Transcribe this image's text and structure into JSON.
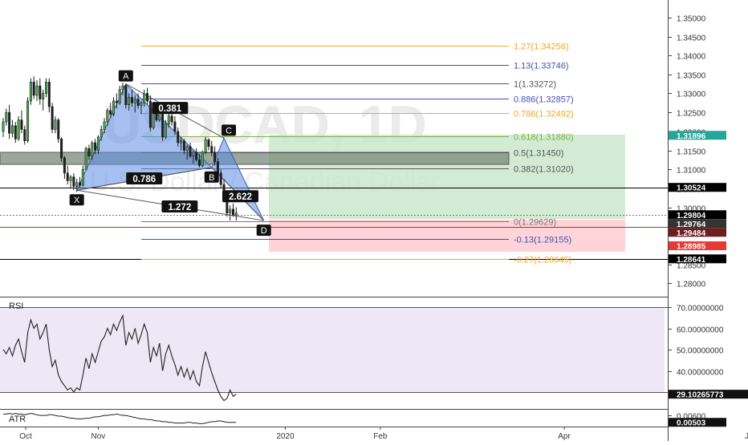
{
  "chart_data": {
    "type": "candlestick",
    "symbol_watermark": "USDCAD, 1D",
    "description_watermark": "U.S. Dollar / Canadian Dollar",
    "colors": {
      "up": "#4caf50",
      "down": "#1f1f1f",
      "background": "#ffffff"
    },
    "price_axis": {
      "ylim": [
        1.2775,
        1.3525
      ],
      "ticks": [
        "1.35000",
        "1.34500",
        "1.34000",
        "1.33500",
        "1.33000",
        "1.32500",
        "1.32000",
        "1.31500",
        "1.31000",
        "1.30500",
        "1.30000",
        "1.29500",
        "1.29000",
        "1.28500",
        "1.28000"
      ]
    },
    "time_axis": {
      "labels": [
        {
          "label": "Oct",
          "day": 0
        },
        {
          "label": "Nov",
          "day": 31
        },
        {
          "label": "2020",
          "day": 92
        },
        {
          "label": "Feb",
          "day": 123
        },
        {
          "label": "Apr",
          "day": 183
        },
        {
          "label": "Jun",
          "day": 244
        }
      ]
    },
    "price_markers": [
      {
        "value": "1.31896",
        "color": "#26a69a"
      },
      {
        "value": "1.30524",
        "color": "#000000"
      },
      {
        "value": "1.29804",
        "color": "#000000"
      },
      {
        "value": "1.29764",
        "color": "#333333"
      },
      {
        "value": "1.29484",
        "color": "#6d1f1f"
      },
      {
        "value": "1.28985",
        "color": "#e53935"
      },
      {
        "value": "1.28641",
        "color": "#000000"
      }
    ],
    "horizontal_lines": [
      {
        "price": 1.30524,
        "color": "#000000"
      },
      {
        "price": 1.29804,
        "color": "#777777",
        "dashed": true
      },
      {
        "price": 1.29484,
        "color": "#c62828"
      },
      {
        "price": 1.28641,
        "color": "#000000"
      }
    ],
    "fib_levels": [
      {
        "label": "1.27(1.34256)",
        "price": 1.34256,
        "color": "#f5a623"
      },
      {
        "label": "1.13(1.33746)",
        "price": 1.33746,
        "color": "#3f51b5"
      },
      {
        "label": "1(1.33272)",
        "price": 1.33272,
        "color": "#555555"
      },
      {
        "label": "0.886(1.32857)",
        "price": 1.32857,
        "color": "#3f51b5"
      },
      {
        "label": "0.786(1.32492)",
        "price": 1.32492,
        "color": "#f5a623"
      },
      {
        "label": "0.618(1.31880)",
        "price": 1.3188,
        "color": "#7cb342"
      },
      {
        "label": "0.5(1.31450)",
        "price": 1.3145,
        "color": "#555555"
      },
      {
        "label": "0.382(1.31020)",
        "price": 1.3102,
        "color": "#555555"
      },
      {
        "label": "0(1.29629)",
        "price": 1.29629,
        "color": "#777777"
      },
      {
        "label": "-0.13(1.29155)",
        "price": 1.29155,
        "color": "#3f51b5"
      },
      {
        "label": "-0.27(1.28645)",
        "price": 1.28645,
        "color": "#f5a623"
      }
    ],
    "pattern_points": [
      {
        "label": "X",
        "day": 24,
        "price": 1.3045
      },
      {
        "label": "A",
        "day": 40,
        "price": 1.3325
      },
      {
        "label": "B",
        "day": 68,
        "price": 1.3105
      },
      {
        "label": "C",
        "day": 72,
        "price": 1.3182
      },
      {
        "label": "D",
        "day": 85,
        "price": 1.2965
      }
    ],
    "pattern_ratios": [
      "0.381",
      "0.786",
      "2.622",
      "1.272"
    ],
    "candles": [
      {
        "o": 1.32,
        "h": 1.3235,
        "l": 1.3185,
        "c": 1.3225
      },
      {
        "o": 1.3225,
        "h": 1.326,
        "l": 1.3215,
        "c": 1.325
      },
      {
        "o": 1.325,
        "h": 1.327,
        "l": 1.318,
        "c": 1.3195
      },
      {
        "o": 1.3195,
        "h": 1.323,
        "l": 1.3185,
        "c": 1.3215
      },
      {
        "o": 1.3215,
        "h": 1.3225,
        "l": 1.317,
        "c": 1.318
      },
      {
        "o": 1.318,
        "h": 1.324,
        "l": 1.3175,
        "c": 1.323
      },
      {
        "o": 1.323,
        "h": 1.3255,
        "l": 1.3195,
        "c": 1.3205
      },
      {
        "o": 1.3205,
        "h": 1.3215,
        "l": 1.3165,
        "c": 1.3175
      },
      {
        "o": 1.3175,
        "h": 1.329,
        "l": 1.317,
        "c": 1.328
      },
      {
        "o": 1.328,
        "h": 1.334,
        "l": 1.327,
        "c": 1.333
      },
      {
        "o": 1.333,
        "h": 1.3345,
        "l": 1.3285,
        "c": 1.3295
      },
      {
        "o": 1.3295,
        "h": 1.3335,
        "l": 1.328,
        "c": 1.332
      },
      {
        "o": 1.332,
        "h": 1.334,
        "l": 1.327,
        "c": 1.3285
      },
      {
        "o": 1.3285,
        "h": 1.331,
        "l": 1.3255,
        "c": 1.33
      },
      {
        "o": 1.33,
        "h": 1.334,
        "l": 1.329,
        "c": 1.333
      },
      {
        "o": 1.333,
        "h": 1.334,
        "l": 1.325,
        "c": 1.3265
      },
      {
        "o": 1.3265,
        "h": 1.3275,
        "l": 1.3195,
        "c": 1.3205
      },
      {
        "o": 1.3205,
        "h": 1.324,
        "l": 1.3195,
        "c": 1.323
      },
      {
        "o": 1.323,
        "h": 1.3235,
        "l": 1.317,
        "c": 1.318
      },
      {
        "o": 1.318,
        "h": 1.3185,
        "l": 1.312,
        "c": 1.313
      },
      {
        "o": 1.313,
        "h": 1.3135,
        "l": 1.3075,
        "c": 1.309
      },
      {
        "o": 1.309,
        "h": 1.311,
        "l": 1.306,
        "c": 1.307
      },
      {
        "o": 1.307,
        "h": 1.3085,
        "l": 1.305,
        "c": 1.308
      },
      {
        "o": 1.308,
        "h": 1.309,
        "l": 1.3045,
        "c": 1.3055
      },
      {
        "o": 1.3055,
        "h": 1.3075,
        "l": 1.304,
        "c": 1.3065
      },
      {
        "o": 1.3065,
        "h": 1.308,
        "l": 1.305,
        "c": 1.3058
      },
      {
        "o": 1.3058,
        "h": 1.311,
        "l": 1.3055,
        "c": 1.31
      },
      {
        "o": 1.31,
        "h": 1.316,
        "l": 1.3095,
        "c": 1.3155
      },
      {
        "o": 1.3155,
        "h": 1.3165,
        "l": 1.3125,
        "c": 1.3135
      },
      {
        "o": 1.3135,
        "h": 1.3175,
        "l": 1.3125,
        "c": 1.317
      },
      {
        "o": 1.317,
        "h": 1.318,
        "l": 1.314,
        "c": 1.315
      },
      {
        "o": 1.315,
        "h": 1.319,
        "l": 1.314,
        "c": 1.3185
      },
      {
        "o": 1.3185,
        "h": 1.3215,
        "l": 1.3175,
        "c": 1.3205
      },
      {
        "o": 1.3205,
        "h": 1.3235,
        "l": 1.3195,
        "c": 1.3225
      },
      {
        "o": 1.3225,
        "h": 1.326,
        "l": 1.3215,
        "c": 1.3255
      },
      {
        "o": 1.3255,
        "h": 1.3275,
        "l": 1.3235,
        "c": 1.3245
      },
      {
        "o": 1.3245,
        "h": 1.329,
        "l": 1.324,
        "c": 1.328
      },
      {
        "o": 1.328,
        "h": 1.33,
        "l": 1.326,
        "c": 1.3275
      },
      {
        "o": 1.3275,
        "h": 1.332,
        "l": 1.327,
        "c": 1.331
      },
      {
        "o": 1.331,
        "h": 1.3328,
        "l": 1.3295,
        "c": 1.332
      },
      {
        "o": 1.332,
        "h": 1.3325,
        "l": 1.326,
        "c": 1.327
      },
      {
        "o": 1.327,
        "h": 1.33,
        "l": 1.3255,
        "c": 1.329
      },
      {
        "o": 1.329,
        "h": 1.331,
        "l": 1.3265,
        "c": 1.3275
      },
      {
        "o": 1.3275,
        "h": 1.3295,
        "l": 1.325,
        "c": 1.3285
      },
      {
        "o": 1.3285,
        "h": 1.33,
        "l": 1.326,
        "c": 1.3268
      },
      {
        "o": 1.3268,
        "h": 1.328,
        "l": 1.3245,
        "c": 1.3275
      },
      {
        "o": 1.3275,
        "h": 1.331,
        "l": 1.3265,
        "c": 1.33
      },
      {
        "o": 1.33,
        "h": 1.3315,
        "l": 1.327,
        "c": 1.328
      },
      {
        "o": 1.328,
        "h": 1.3295,
        "l": 1.32,
        "c": 1.321
      },
      {
        "o": 1.321,
        "h": 1.326,
        "l": 1.3205,
        "c": 1.325
      },
      {
        "o": 1.325,
        "h": 1.3265,
        "l": 1.3225,
        "c": 1.323
      },
      {
        "o": 1.323,
        "h": 1.326,
        "l": 1.3225,
        "c": 1.3255
      },
      {
        "o": 1.3255,
        "h": 1.326,
        "l": 1.3175,
        "c": 1.3185
      },
      {
        "o": 1.3185,
        "h": 1.323,
        "l": 1.318,
        "c": 1.322
      },
      {
        "o": 1.322,
        "h": 1.325,
        "l": 1.321,
        "c": 1.324
      },
      {
        "o": 1.324,
        "h": 1.3255,
        "l": 1.3215,
        "c": 1.3225
      },
      {
        "o": 1.3225,
        "h": 1.324,
        "l": 1.319,
        "c": 1.32
      },
      {
        "o": 1.32,
        "h": 1.321,
        "l": 1.316,
        "c": 1.317
      },
      {
        "o": 1.317,
        "h": 1.3185,
        "l": 1.315,
        "c": 1.3175
      },
      {
        "o": 1.3175,
        "h": 1.318,
        "l": 1.314,
        "c": 1.315
      },
      {
        "o": 1.315,
        "h": 1.3165,
        "l": 1.3125,
        "c": 1.316
      },
      {
        "o": 1.316,
        "h": 1.317,
        "l": 1.313,
        "c": 1.3135
      },
      {
        "o": 1.3135,
        "h": 1.315,
        "l": 1.3115,
        "c": 1.3145
      },
      {
        "o": 1.3145,
        "h": 1.3155,
        "l": 1.312,
        "c": 1.3125
      },
      {
        "o": 1.3125,
        "h": 1.314,
        "l": 1.3105,
        "c": 1.311
      },
      {
        "o": 1.311,
        "h": 1.315,
        "l": 1.3105,
        "c": 1.3145
      },
      {
        "o": 1.3145,
        "h": 1.3185,
        "l": 1.314,
        "c": 1.3178
      },
      {
        "o": 1.3178,
        "h": 1.3182,
        "l": 1.315,
        "c": 1.316
      },
      {
        "o": 1.316,
        "h": 1.3175,
        "l": 1.3135,
        "c": 1.3145
      },
      {
        "o": 1.3145,
        "h": 1.316,
        "l": 1.311,
        "c": 1.312
      },
      {
        "o": 1.312,
        "h": 1.313,
        "l": 1.308,
        "c": 1.309
      },
      {
        "o": 1.309,
        "h": 1.31,
        "l": 1.305,
        "c": 1.306
      },
      {
        "o": 1.306,
        "h": 1.3075,
        "l": 1.302,
        "c": 1.303
      },
      {
        "o": 1.303,
        "h": 1.304,
        "l": 1.2975,
        "c": 1.2985
      },
      {
        "o": 1.2985,
        "h": 1.3005,
        "l": 1.2965,
        "c": 1.2995
      },
      {
        "o": 1.2995,
        "h": 1.301,
        "l": 1.2975,
        "c": 1.298
      },
      {
        "o": 1.298,
        "h": 1.3,
        "l": 1.2965,
        "c": 1.2985
      }
    ]
  },
  "rsi": {
    "title": "RSI",
    "levels": [
      30,
      70
    ],
    "ticks": [
      "70.00000000",
      "60.00000000",
      "50.00000000",
      "40.00000000"
    ],
    "ylim": [
      24,
      74
    ],
    "current_label": "29.10265773",
    "values": [
      50,
      48,
      51,
      47,
      52,
      55,
      49,
      44,
      58,
      64,
      60,
      62,
      55,
      58,
      62,
      50,
      42,
      45,
      38,
      35,
      33,
      31,
      32,
      30,
      32,
      31,
      38,
      46,
      41,
      48,
      44,
      49,
      54,
      56,
      60,
      57,
      62,
      59,
      63,
      66,
      52,
      58,
      55,
      60,
      53,
      57,
      62,
      58,
      44,
      51,
      47,
      53,
      40,
      48,
      52,
      47,
      43,
      38,
      42,
      37,
      41,
      36,
      40,
      35,
      33,
      42,
      49,
      44,
      39,
      35,
      31,
      28,
      26,
      27,
      31,
      28,
      29
    ]
  },
  "atr": {
    "title": "ATR",
    "ticks": [
      "0.00600"
    ],
    "current_label": "0.00503",
    "values": [
      0.0062,
      0.0062,
      0.0063,
      0.0062,
      0.0063,
      0.0062,
      0.0062,
      0.0061,
      0.0062,
      0.0063,
      0.0062,
      0.0061,
      0.006,
      0.006,
      0.006,
      0.0061,
      0.0061,
      0.006,
      0.0059,
      0.0059,
      0.0058,
      0.0057,
      0.0056,
      0.0056,
      0.0055,
      0.0055,
      0.0055,
      0.0056,
      0.0056,
      0.0057,
      0.0058,
      0.0058,
      0.0059,
      0.006,
      0.006,
      0.0061,
      0.0061,
      0.0062,
      0.0061,
      0.006,
      0.006,
      0.0059,
      0.0058,
      0.0057,
      0.0056,
      0.0055,
      0.0055,
      0.0054,
      0.0054,
      0.0053,
      0.0052,
      0.0052,
      0.0051,
      0.0051,
      0.005,
      0.005,
      0.0049,
      0.0049,
      0.0049,
      0.0049,
      0.005,
      0.005,
      0.0049,
      0.0049,
      0.0048,
      0.0048,
      0.0049,
      0.005,
      0.0051,
      0.0051,
      0.0052,
      0.0052,
      0.0051,
      0.005,
      0.005,
      0.005,
      0.005
    ]
  }
}
